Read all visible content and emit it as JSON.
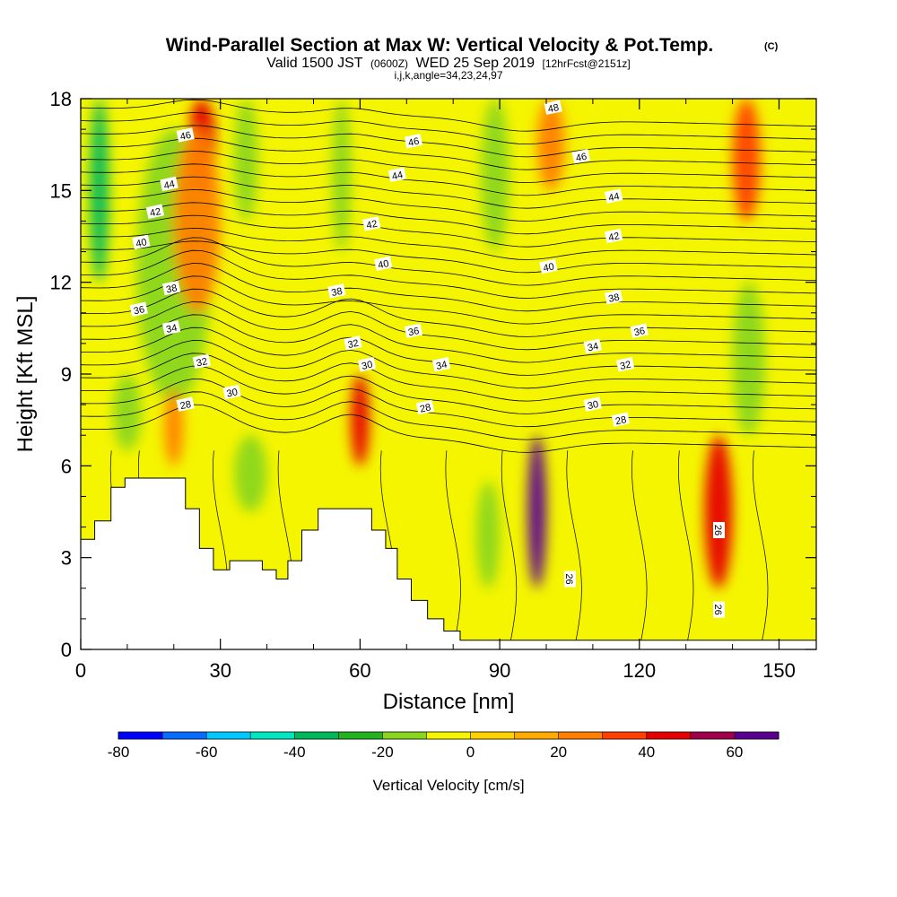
{
  "chart_data": {
    "type": "heatmap",
    "title": "Wind-Parallel Section at Max W: Vertical Velocity & Pot.Temp.",
    "title_mark": "(C)",
    "subtitle_parts": [
      "Valid 1500 JST",
      "(0600Z)",
      "WED 25 Sep 2019",
      "[12hrFcst@2151z]"
    ],
    "subtitle2": "i,j,k,angle=34,23,24,97",
    "xlabel": "Distance [nm]",
    "ylabel": "Height [Kft MSL]",
    "xlim": [
      0,
      158
    ],
    "ylim": [
      0,
      18
    ],
    "xticks": [
      0,
      30,
      60,
      90,
      120,
      150
    ],
    "yticks": [
      0,
      3,
      6,
      9,
      12,
      15,
      18
    ],
    "colorbar": {
      "label": "Vertical Velocity [cm/s]",
      "ticks": [
        -80,
        -60,
        -40,
        -20,
        0,
        20,
        40,
        60
      ],
      "levels": [
        -80,
        -70,
        -60,
        -50,
        -40,
        -30,
        -20,
        -10,
        0,
        10,
        20,
        30,
        40,
        50,
        60,
        70
      ],
      "colors": [
        "#0000ff",
        "#0a6cff",
        "#00c8ff",
        "#00e6c0",
        "#00b85c",
        "#22b222",
        "#8ad61e",
        "#f5f500",
        "#ffd200",
        "#ffaa00",
        "#ff7f00",
        "#ff4000",
        "#e60000",
        "#a0004a",
        "#5a0090"
      ]
    },
    "vertical_velocity_cells_cm_s": [
      {
        "x": [
          2,
          6
        ],
        "y": [
          12,
          18
        ],
        "value": -35
      },
      {
        "x": [
          12,
          28
        ],
        "y": [
          8,
          17
        ],
        "value": -20
      },
      {
        "x": [
          23,
          29
        ],
        "y": [
          15,
          18
        ],
        "value": 45
      },
      {
        "x": [
          20,
          30
        ],
        "y": [
          11,
          17
        ],
        "value": 25
      },
      {
        "x": [
          33,
          38
        ],
        "y": [
          14,
          18
        ],
        "value": -15
      },
      {
        "x": [
          18,
          22
        ],
        "y": [
          6,
          8.5
        ],
        "value": 20
      },
      {
        "x": [
          7,
          13
        ],
        "y": [
          6.5,
          9
        ],
        "value": -15
      },
      {
        "x": [
          33,
          40
        ],
        "y": [
          4.5,
          7
        ],
        "value": -15
      },
      {
        "x": [
          54,
          58
        ],
        "y": [
          13,
          18
        ],
        "value": -15
      },
      {
        "x": [
          58,
          62
        ],
        "y": [
          6,
          9
        ],
        "value": 40
      },
      {
        "x": [
          86,
          92
        ],
        "y": [
          13,
          18
        ],
        "value": -20
      },
      {
        "x": [
          96,
          100
        ],
        "y": [
          2,
          7
        ],
        "value": 65
      },
      {
        "x": [
          85,
          90
        ],
        "y": [
          2,
          5.5
        ],
        "value": -20
      },
      {
        "x": [
          98,
          104
        ],
        "y": [
          15,
          18
        ],
        "value": 25
      },
      {
        "x": [
          134,
          140
        ],
        "y": [
          2,
          7
        ],
        "value": 45
      },
      {
        "x": [
          140,
          146
        ],
        "y": [
          14,
          18
        ],
        "value": 35
      },
      {
        "x": [
          140,
          147
        ],
        "y": [
          7,
          12
        ],
        "value": -20
      }
    ],
    "theta_contour_labels": [
      {
        "label": "46",
        "x": 22.5,
        "y": 16.8
      },
      {
        "label": "44",
        "x": 19,
        "y": 15.2
      },
      {
        "label": "42",
        "x": 16,
        "y": 14.3
      },
      {
        "label": "40",
        "x": 13,
        "y": 13.3
      },
      {
        "label": "38",
        "x": 19.5,
        "y": 11.8
      },
      {
        "label": "36",
        "x": 12.5,
        "y": 11.1
      },
      {
        "label": "34",
        "x": 19.5,
        "y": 10.5
      },
      {
        "label": "32",
        "x": 26,
        "y": 9.4
      },
      {
        "label": "30",
        "x": 32.5,
        "y": 8.4
      },
      {
        "label": "28",
        "x": 22.5,
        "y": 8.0
      },
      {
        "label": "38",
        "x": 55,
        "y": 11.7
      },
      {
        "label": "32",
        "x": 58.5,
        "y": 10.0
      },
      {
        "label": "30",
        "x": 61.5,
        "y": 9.3
      },
      {
        "label": "36",
        "x": 71.5,
        "y": 10.4
      },
      {
        "label": "34",
        "x": 77.5,
        "y": 9.3
      },
      {
        "label": "28",
        "x": 74,
        "y": 7.9
      },
      {
        "label": "46",
        "x": 71.5,
        "y": 16.6
      },
      {
        "label": "44",
        "x": 68,
        "y": 15.5
      },
      {
        "label": "42",
        "x": 62.5,
        "y": 13.9
      },
      {
        "label": "40",
        "x": 65,
        "y": 12.6
      },
      {
        "label": "48",
        "x": 101.5,
        "y": 17.7
      },
      {
        "label": "46",
        "x": 107.5,
        "y": 16.1
      },
      {
        "label": "44",
        "x": 114.5,
        "y": 14.8
      },
      {
        "label": "42",
        "x": 114.5,
        "y": 13.5
      },
      {
        "label": "40",
        "x": 100.5,
        "y": 12.5
      },
      {
        "label": "38",
        "x": 114.5,
        "y": 11.5
      },
      {
        "label": "36",
        "x": 120,
        "y": 10.4
      },
      {
        "label": "34",
        "x": 110,
        "y": 9.9
      },
      {
        "label": "32",
        "x": 117,
        "y": 9.3
      },
      {
        "label": "30",
        "x": 110,
        "y": 8.0
      },
      {
        "label": "28",
        "x": 116,
        "y": 7.5
      },
      {
        "label": "26",
        "x": 105,
        "y": 2.3
      },
      {
        "label": "26",
        "x": 137,
        "y": 3.9
      },
      {
        "label": "26",
        "x": 137,
        "y": 1.3
      }
    ],
    "terrain_kft": [
      [
        0,
        3.6
      ],
      [
        3,
        4.2
      ],
      [
        6.5,
        5.3
      ],
      [
        9.5,
        5.6
      ],
      [
        22.5,
        4.6
      ],
      [
        25.5,
        3.3
      ],
      [
        28.5,
        2.6
      ],
      [
        32,
        2.9
      ],
      [
        39,
        2.6
      ],
      [
        42,
        2.3
      ],
      [
        44.5,
        2.9
      ],
      [
        47.5,
        3.9
      ],
      [
        51,
        4.6
      ],
      [
        60,
        4.6
      ],
      [
        62.5,
        3.9
      ],
      [
        65.5,
        3.3
      ],
      [
        68,
        2.3
      ],
      [
        71,
        1.6
      ],
      [
        74.5,
        1.0
      ],
      [
        78,
        0.6
      ],
      [
        81.5,
        0.3
      ],
      [
        158,
        0.3
      ]
    ]
  }
}
